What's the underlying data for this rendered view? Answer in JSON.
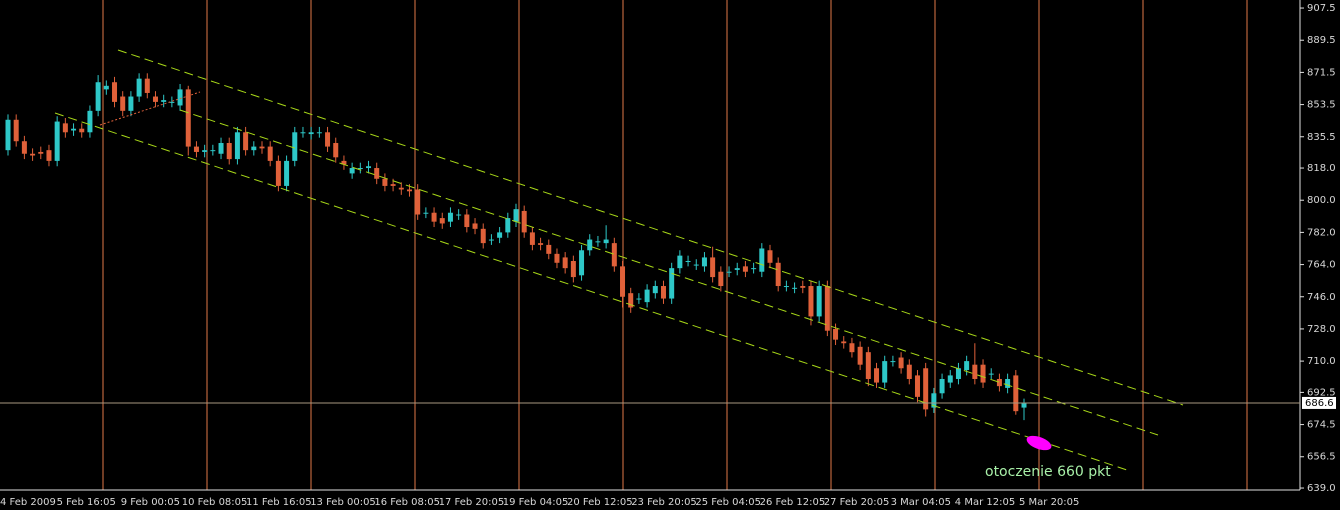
{
  "chart_data": {
    "type": "candlestick",
    "up_color": "#2ec8c8",
    "down_color": "#e0613a",
    "background": "#000000",
    "ylim": [
      637.9,
      912.0
    ],
    "yticks": [
      907.5,
      889.5,
      871.5,
      853.5,
      835.5,
      {
        "value": 818,
        "label": "818.0"
      },
      {
        "value": 800,
        "label": "800.0"
      },
      {
        "value": 782,
        "label": "782.0"
      },
      {
        "value": 764,
        "label": "764.0"
      },
      {
        "value": 746,
        "label": "746.0"
      },
      {
        "value": 728,
        "label": "728.0"
      },
      {
        "value": 710,
        "label": "710.0"
      },
      692.5,
      674.5,
      656.5,
      {
        "value": 639,
        "label": "639.0"
      }
    ],
    "xtick_labels": [
      "4 Feb 2009",
      "5 Feb 16:05",
      "9 Feb 00:05",
      "10 Feb 08:05",
      "11 Feb 16:05",
      "13 Feb 00:05",
      "16 Feb 08:05",
      "17 Feb 20:05",
      "19 Feb 04:05",
      "20 Feb 12:05",
      "23 Feb 20:05",
      "25 Feb 04:05",
      "26 Feb 12:05",
      "27 Feb 20:05",
      "3 Mar 04:05",
      "4 Mar 12:05",
      "5 Mar 20:05"
    ],
    "current_price": 686.6,
    "annotation": "otoczenie 660 pkt",
    "open": [
      828,
      845,
      833,
      826,
      827,
      828,
      822,
      843,
      839,
      840,
      838,
      850,
      862,
      866,
      858,
      850,
      858,
      868,
      858,
      855,
      855,
      853,
      862,
      830,
      827,
      828,
      826,
      832,
      823,
      838,
      828,
      830,
      830,
      822,
      808,
      822,
      838,
      837,
      838,
      838,
      832,
      822,
      815,
      818,
      818,
      818,
      812,
      809,
      807,
      806,
      806,
      793,
      793,
      790,
      788,
      792,
      792,
      787,
      784,
      778,
      779,
      782,
      788,
      794,
      782,
      776,
      775,
      770,
      768,
      766,
      758,
      772,
      777,
      776,
      776,
      763,
      748,
      745,
      743,
      748,
      752,
      745,
      762,
      766,
      764,
      763,
      768,
      760,
      760,
      761,
      763,
      762,
      760,
      772,
      765,
      752,
      751,
      752,
      752,
      735,
      752,
      728,
      721,
      720,
      718,
      715,
      706,
      698,
      710,
      712,
      708,
      702,
      706,
      684,
      692,
      698,
      700,
      705,
      708,
      708,
      703,
      700,
      695,
      702,
      684
    ],
    "high": [
      848,
      848,
      836,
      829,
      830,
      831,
      847,
      846,
      843,
      843,
      853,
      870,
      867,
      869,
      861,
      861,
      871,
      871,
      861,
      859,
      858,
      865,
      864,
      833,
      831,
      831,
      835,
      835,
      841,
      841,
      833,
      833,
      833,
      825,
      825,
      841,
      841,
      841,
      841,
      841,
      835,
      825,
      821,
      821,
      822,
      821,
      815,
      812,
      810,
      809,
      809,
      796,
      796,
      793,
      796,
      795,
      795,
      790,
      787,
      781,
      785,
      793,
      798,
      797,
      785,
      779,
      778,
      773,
      771,
      769,
      775,
      781,
      780,
      786,
      779,
      766,
      751,
      748,
      753,
      755,
      755,
      765,
      772,
      769,
      767,
      771,
      774,
      763,
      763,
      765,
      766,
      765,
      776,
      775,
      768,
      755,
      754,
      755,
      755,
      755,
      755,
      731,
      724,
      723,
      721,
      718,
      709,
      713,
      713,
      715,
      711,
      705,
      709,
      695,
      703,
      705,
      709,
      713,
      720,
      711,
      706,
      703,
      703,
      705,
      689
    ],
    "low": [
      825,
      830,
      823,
      822,
      823,
      819,
      819,
      835,
      836,
      835,
      835,
      847,
      859,
      852,
      847,
      847,
      855,
      857,
      852,
      852,
      852,
      850,
      825,
      824,
      824,
      825,
      823,
      820,
      820,
      825,
      825,
      826,
      819,
      805,
      805,
      819,
      835,
      834,
      835,
      827,
      821,
      817,
      812,
      815,
      815,
      809,
      805,
      805,
      803,
      802,
      789,
      790,
      785,
      784,
      785,
      789,
      782,
      781,
      773,
      775,
      776,
      779,
      785,
      779,
      772,
      772,
      767,
      762,
      759,
      754,
      755,
      769,
      774,
      773,
      760,
      740,
      737,
      742,
      740,
      745,
      742,
      742,
      759,
      763,
      761,
      760,
      754,
      749,
      757,
      758,
      757,
      759,
      757,
      762,
      749,
      749,
      748,
      748,
      730,
      732,
      724,
      719,
      717,
      712,
      705,
      696,
      695,
      695,
      707,
      703,
      697,
      687,
      679,
      681,
      689,
      695,
      697,
      702,
      697,
      695,
      700,
      693,
      692,
      680,
      677
    ],
    "close": [
      845,
      833,
      826,
      825,
      826,
      822,
      844,
      838,
      840,
      838,
      850,
      866,
      864,
      855,
      850,
      858,
      868,
      860,
      855,
      856,
      855,
      862,
      830,
      827,
      828,
      828,
      832,
      823,
      838,
      828,
      830,
      829,
      822,
      808,
      822,
      838,
      838,
      838,
      838,
      830,
      824,
      820,
      818,
      818,
      819,
      812,
      808,
      808,
      806,
      805,
      792,
      793,
      788,
      787,
      793,
      792,
      785,
      784,
      776,
      778,
      782,
      790,
      795,
      782,
      775,
      775,
      770,
      765,
      762,
      757,
      772,
      778,
      777,
      778,
      763,
      746,
      740,
      745,
      750,
      752,
      745,
      762,
      769,
      766,
      764,
      768,
      757,
      752,
      760,
      762,
      760,
      762,
      773,
      765,
      752,
      752,
      751,
      751,
      735,
      752,
      727,
      722,
      720,
      715,
      708,
      700,
      698,
      710,
      710,
      706,
      700,
      690,
      683,
      692,
      700,
      702,
      706,
      710,
      700,
      698,
      703,
      696,
      700,
      682,
      686.6
    ]
  }
}
